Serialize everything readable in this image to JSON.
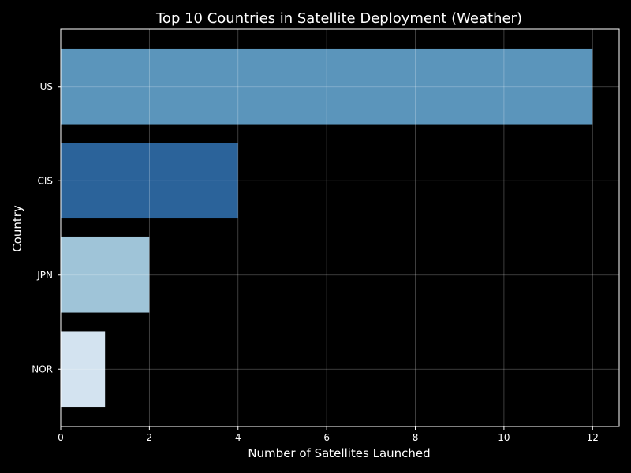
{
  "chart_data": {
    "type": "bar",
    "orientation": "horizontal",
    "title": "Top 10 Countries in Satellite Deployment (Weather)",
    "xlabel": "Number of Satellites Launched",
    "ylabel": "Country",
    "categories": [
      "US",
      "CIS",
      "JPN",
      "NOR"
    ],
    "values": [
      12,
      4,
      2,
      1
    ],
    "bar_colors": [
      "#5b95bb",
      "#2b639a",
      "#9fc4d8",
      "#d3e3f0"
    ],
    "xlim": [
      0,
      12.6
    ],
    "xticks": [
      0,
      2,
      4,
      6,
      8,
      10,
      12
    ],
    "grid": true,
    "legend": "none"
  },
  "colors": {
    "background": "#000000",
    "text": "#ffffff",
    "grid": "#5a5a5a",
    "spine": "#ffffff"
  }
}
